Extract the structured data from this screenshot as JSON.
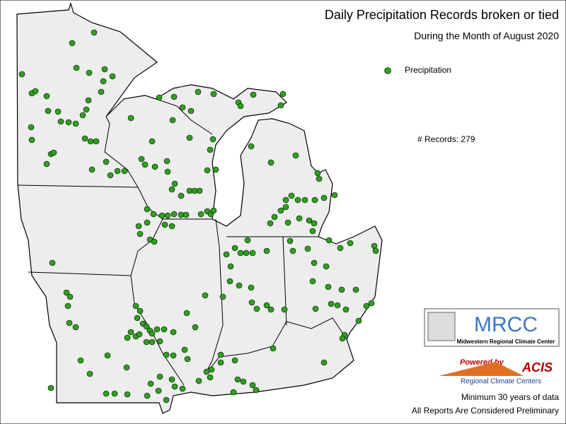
{
  "title": "Daily Precipitation Records broken or tied",
  "subtitle": "During the Month of August 2020",
  "legend": {
    "label": "Precipitation",
    "color": "#2ea01e"
  },
  "records": "# Records: 279",
  "logo_mrcc": {
    "name": "MRCC",
    "full_name": "Midwestern Regional Climate Center"
  },
  "logo_acis": {
    "powered": "Powered by",
    "name": "ACIS",
    "full_name": "Regional Climate Centers"
  },
  "notes": [
    "Minimum 30 years of data",
    "All Reports Are Considered Preliminary"
  ]
}
